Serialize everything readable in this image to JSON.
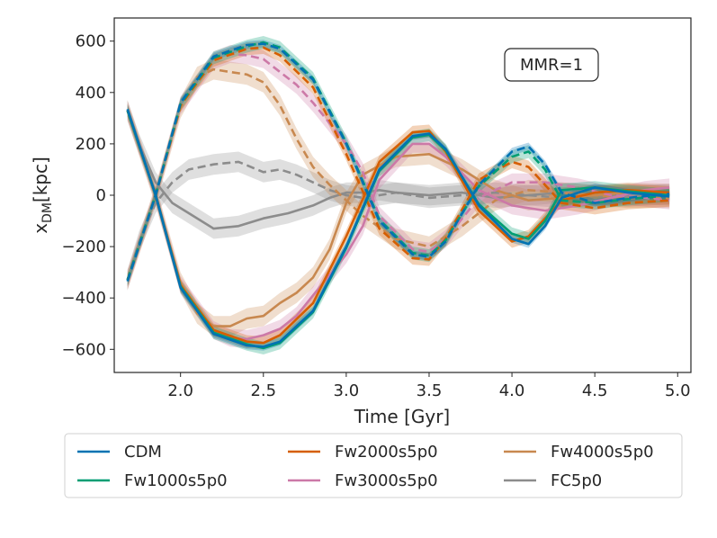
{
  "chart_data": {
    "type": "line",
    "title": "",
    "xlabel": "Time [Gyr]",
    "ylabel_main": "x",
    "ylabel_sub": "DM",
    "ylabel_unit": "[kpc]",
    "xlim": [
      1.6,
      5.08
    ],
    "ylim": [
      -690,
      690
    ],
    "xticks": [
      2.0,
      2.5,
      3.0,
      3.5,
      4.0,
      4.5,
      5.0
    ],
    "xtick_labels": [
      "2.0",
      "2.5",
      "3.0",
      "3.5",
      "4.0",
      "4.5",
      "5.0"
    ],
    "yticks": [
      600,
      400,
      200,
      0,
      -200,
      -400,
      -600
    ],
    "ytick_labels": [
      "600",
      "400",
      "200",
      "0",
      "−200",
      "−400",
      "−600"
    ],
    "grid": false,
    "legend_position": "below",
    "annotation": "MMR=1",
    "series": [
      {
        "name": "CDM",
        "color": "#0072b2",
        "solid": {
          "x": [
            1.68,
            1.85,
            2.0,
            2.2,
            2.4,
            2.5,
            2.6,
            2.8,
            3.0,
            3.2,
            3.4,
            3.5,
            3.6,
            3.8,
            4.0,
            4.1,
            4.2,
            4.3,
            4.5,
            4.7,
            4.95
          ],
          "y": [
            335,
            0,
            -360,
            -540,
            -585,
            -590,
            -570,
            -450,
            -200,
            100,
            230,
            240,
            180,
            -40,
            -170,
            -190,
            -120,
            -10,
            30,
            10,
            -5
          ]
        },
        "dashed": {
          "x": [
            1.68,
            1.85,
            2.0,
            2.2,
            2.4,
            2.5,
            2.6,
            2.8,
            3.0,
            3.2,
            3.4,
            3.5,
            3.6,
            3.8,
            4.0,
            4.1,
            4.2,
            4.3,
            4.5,
            4.7,
            4.95
          ],
          "y": [
            -335,
            0,
            360,
            540,
            585,
            590,
            570,
            450,
            200,
            -100,
            -230,
            -240,
            -180,
            40,
            170,
            190,
            120,
            10,
            -30,
            -10,
            5
          ]
        },
        "band": 15
      },
      {
        "name": "Fw1000s5p0",
        "color": "#009e73",
        "solid": {
          "x": [
            1.68,
            1.85,
            2.0,
            2.2,
            2.4,
            2.5,
            2.6,
            2.8,
            3.0,
            3.2,
            3.4,
            3.5,
            3.6,
            3.8,
            4.0,
            4.1,
            4.2,
            4.3,
            4.5,
            4.7,
            4.95
          ],
          "y": [
            330,
            0,
            -355,
            -535,
            -580,
            -595,
            -575,
            -455,
            -205,
            95,
            225,
            235,
            175,
            -35,
            -150,
            -170,
            -100,
            20,
            30,
            15,
            0
          ]
        },
        "dashed": {
          "x": [
            1.68,
            1.85,
            2.0,
            2.2,
            2.4,
            2.5,
            2.6,
            2.8,
            3.0,
            3.2,
            3.4,
            3.5,
            3.6,
            3.8,
            4.0,
            4.1,
            4.2,
            4.3,
            4.5,
            4.7,
            4.95
          ],
          "y": [
            -330,
            0,
            355,
            535,
            580,
            595,
            575,
            455,
            205,
            -95,
            -225,
            -235,
            -175,
            35,
            150,
            170,
            100,
            -20,
            -30,
            -15,
            0
          ]
        },
        "band": 25
      },
      {
        "name": "Fw2000s5p0",
        "color": "#d55e00",
        "solid": {
          "x": [
            1.68,
            1.85,
            2.0,
            2.2,
            2.4,
            2.5,
            2.6,
            2.8,
            3.0,
            3.2,
            3.4,
            3.5,
            3.6,
            3.8,
            4.0,
            4.1,
            4.2,
            4.3,
            4.5,
            4.7,
            4.95
          ],
          "y": [
            330,
            0,
            -350,
            -525,
            -570,
            -575,
            -545,
            -420,
            -160,
            130,
            245,
            250,
            170,
            -60,
            -180,
            -160,
            -90,
            -20,
            10,
            20,
            10
          ]
        },
        "dashed": {
          "x": [
            1.68,
            1.85,
            2.0,
            2.2,
            2.4,
            2.5,
            2.6,
            2.8,
            3.0,
            3.2,
            3.4,
            3.5,
            3.6,
            3.8,
            4.0,
            4.1,
            4.2,
            4.3,
            4.5,
            4.7,
            4.95
          ],
          "y": [
            -330,
            0,
            350,
            525,
            570,
            575,
            545,
            420,
            160,
            -130,
            -245,
            -250,
            -170,
            60,
            130,
            110,
            40,
            -30,
            -50,
            -30,
            -20
          ]
        },
        "band": 25
      },
      {
        "name": "Fw3000s5p0",
        "color": "#cc79a7",
        "solid": {
          "x": [
            1.68,
            1.85,
            2.0,
            2.2,
            2.3,
            2.4,
            2.5,
            2.6,
            2.7,
            2.8,
            3.0,
            3.1,
            3.2,
            3.4,
            3.5,
            3.6,
            3.8,
            4.0,
            4.2,
            4.4,
            4.6,
            4.8,
            4.95
          ],
          "y": [
            330,
            0,
            -350,
            -525,
            -555,
            -560,
            -545,
            -520,
            -470,
            -390,
            -230,
            -120,
            60,
            200,
            200,
            150,
            20,
            -40,
            -60,
            -40,
            -10,
            20,
            30
          ]
        },
        "dashed": {
          "x": [
            1.68,
            1.85,
            2.0,
            2.2,
            2.3,
            2.4,
            2.5,
            2.6,
            2.7,
            2.8,
            3.0,
            3.1,
            3.2,
            3.4,
            3.5,
            3.6,
            3.8,
            4.0,
            4.2,
            4.4,
            4.6,
            4.8,
            4.95
          ],
          "y": [
            -330,
            0,
            350,
            525,
            550,
            545,
            530,
            480,
            430,
            360,
            200,
            90,
            -80,
            -210,
            -220,
            -170,
            -10,
            50,
            50,
            30,
            0,
            -10,
            -20
          ]
        },
        "band": 35
      },
      {
        "name": "Fw4000s5p0",
        "color": "#c8884f",
        "solid": {
          "x": [
            1.68,
            1.85,
            2.0,
            2.1,
            2.2,
            2.3,
            2.4,
            2.5,
            2.6,
            2.7,
            2.8,
            2.9,
            3.0,
            3.1,
            3.3,
            3.5,
            3.7,
            3.9,
            4.1,
            4.3,
            4.5,
            4.7,
            4.95
          ],
          "y": [
            330,
            0,
            -340,
            -460,
            -510,
            -510,
            -480,
            -470,
            -420,
            -380,
            -320,
            -210,
            -30,
            80,
            150,
            160,
            100,
            20,
            -20,
            -10,
            0,
            10,
            5
          ]
        },
        "dashed": {
          "x": [
            1.68,
            1.85,
            2.0,
            2.1,
            2.2,
            2.3,
            2.4,
            2.5,
            2.6,
            2.7,
            2.8,
            2.9,
            3.0,
            3.1,
            3.3,
            3.5,
            3.7,
            3.9,
            4.1,
            4.3,
            4.5,
            4.7,
            4.95
          ],
          "y": [
            -330,
            0,
            340,
            460,
            490,
            480,
            470,
            440,
            350,
            220,
            110,
            40,
            -20,
            -80,
            -170,
            -200,
            -120,
            -20,
            20,
            10,
            0,
            -10,
            -10
          ]
        },
        "band": 40
      },
      {
        "name": "FC5p0",
        "color": "#8c8c8c",
        "solid": {
          "x": [
            1.68,
            1.75,
            1.85,
            1.95,
            2.05,
            2.2,
            2.35,
            2.5,
            2.65,
            2.8,
            2.9,
            3.0,
            3.1,
            3.2,
            3.3,
            3.5,
            3.7,
            3.9,
            4.1,
            4.3,
            4.5,
            4.7,
            4.95
          ],
          "y": [
            330,
            200,
            50,
            -30,
            -70,
            -130,
            -120,
            -90,
            -70,
            -40,
            -10,
            10,
            10,
            20,
            10,
            0,
            10,
            -10,
            0,
            10,
            0,
            -5,
            5
          ]
        },
        "dashed": {
          "x": [
            1.68,
            1.75,
            1.85,
            1.95,
            2.05,
            2.2,
            2.35,
            2.5,
            2.6,
            2.7,
            2.8,
            2.9,
            3.0,
            3.1,
            3.2,
            3.3,
            3.5,
            3.7,
            3.9,
            4.1,
            4.3,
            4.5,
            4.7,
            4.95
          ],
          "y": [
            -330,
            -180,
            -30,
            50,
            100,
            120,
            130,
            90,
            100,
            80,
            50,
            20,
            0,
            -10,
            0,
            10,
            -10,
            0,
            10,
            0,
            -10,
            0,
            5,
            0
          ]
        },
        "band": 40
      }
    ]
  }
}
